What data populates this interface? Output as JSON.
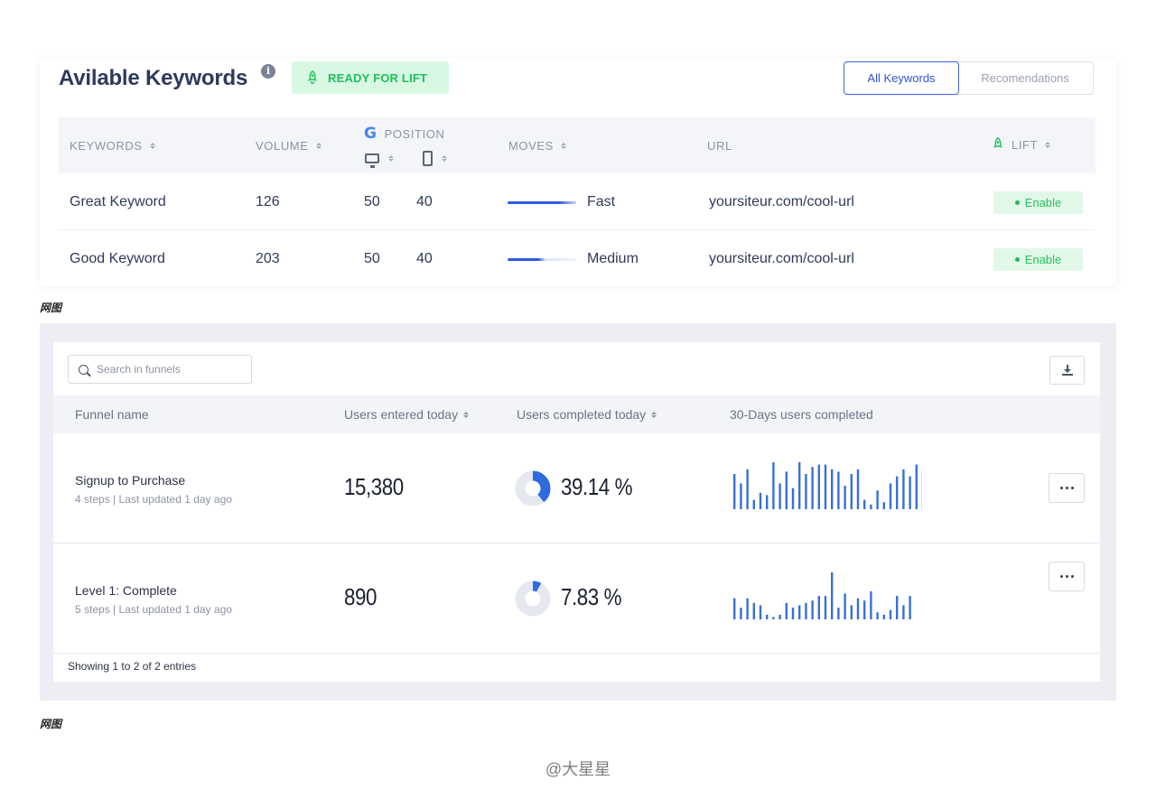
{
  "keywords_panel": {
    "title": "Avilable Keywords",
    "info_glyph": "i",
    "badge": "READY FOR LIFT",
    "tabs": [
      {
        "label": "All Keywords",
        "active": true
      },
      {
        "label": "Recomendations",
        "active": false
      }
    ],
    "columns": {
      "keywords": "KEYWORDS",
      "volume": "VOLUME",
      "position": "POSITION",
      "position_glyph": "G",
      "moves": "MOVES",
      "url": "URL",
      "lift": "LIFT"
    },
    "rows": [
      {
        "keyword": "Great Keyword",
        "volume": "126",
        "desktop": "50",
        "mobile": "40",
        "move": "Fast",
        "move_level": 1.0,
        "url": "yoursiteur.com/cool-url",
        "lift": "Enable"
      },
      {
        "keyword": "Good Keyword",
        "volume": "203",
        "desktop": "50",
        "mobile": "40",
        "move": "Medium",
        "move_level": 0.5,
        "url": "yoursiteur.com/cool-url",
        "lift": "Enable"
      }
    ],
    "colors": {
      "accent": "#3d64e0",
      "success": "#24b55a",
      "success_bg": "#e1f8e8"
    }
  },
  "caption_1": "网图",
  "funnels_panel": {
    "search_placeholder": "Search in funnels",
    "columns": {
      "name": "Funnel name",
      "entered": "Users entered today",
      "completed": "Users completed today",
      "thirty_day": "30-Days users completed"
    },
    "rows": [
      {
        "name": "Signup to Purchase",
        "meta": "4 steps  |  Last updated 1 day ago",
        "entered": "15,380",
        "completed_pct": "39.14 %",
        "completed_fraction": 0.3914,
        "spark": [
          0.75,
          0.55,
          0.85,
          0.2,
          0.35,
          0.3,
          1.0,
          0.55,
          0.8,
          0.45,
          1.0,
          0.75,
          0.9,
          0.95,
          0.95,
          0.85,
          0.8,
          0.5,
          0.75,
          0.85,
          0.2,
          0.1,
          0.4,
          0.15,
          0.55,
          0.7,
          0.85,
          0.7,
          0.95,
          0.85
        ]
      },
      {
        "name": "Level 1: Complete",
        "meta": "5 steps  |  Last updated 1 day ago",
        "entered": "890",
        "completed_pct": "7.83 %",
        "completed_fraction": 0.0783,
        "spark": [
          0.45,
          0.25,
          0.45,
          0.35,
          0.3,
          0.1,
          0.05,
          0.1,
          0.35,
          0.25,
          0.3,
          0.35,
          0.4,
          0.5,
          0.5,
          1.0,
          0.25,
          0.55,
          0.3,
          0.45,
          0.4,
          0.6,
          0.15,
          0.1,
          0.2,
          0.5,
          0.3,
          0.5
        ]
      }
    ],
    "footer": "Showing 1 to 2 of 2 entries",
    "colors": {
      "bar": "#3a6fd8",
      "donut": "#2f6bdc",
      "donut_track": "#e5e8ef"
    }
  },
  "caption_2": "网图",
  "watermark": "@大星星"
}
